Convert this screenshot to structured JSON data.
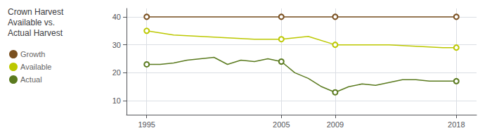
{
  "chart_data": {
    "type": "line",
    "title": "Crown Harvest\nAvailable vs.\nActual Harvest",
    "series": [
      {
        "name": "Growth",
        "color": "#7a5020",
        "x": [
          1995,
          2005,
          2009,
          2018
        ],
        "values": [
          40,
          40,
          40,
          40
        ]
      },
      {
        "name": "Available",
        "color": "#bcc800",
        "x": [
          1995,
          1997,
          1999,
          2001,
          2003,
          2005,
          2007,
          2009,
          2011,
          2013,
          2015,
          2017,
          2018
        ],
        "values": [
          35,
          33.5,
          33,
          32.5,
          32,
          32,
          33,
          30,
          30,
          30,
          29.5,
          29,
          29
        ]
      },
      {
        "name": "Actual",
        "color": "#5a7a1e",
        "x": [
          1995,
          1996,
          1997,
          1998,
          1999,
          2000,
          2001,
          2002,
          2003,
          2004,
          2005,
          2006,
          2007,
          2008,
          2009,
          2010,
          2011,
          2012,
          2013,
          2014,
          2015,
          2016,
          2017,
          2018
        ],
        "values": [
          23,
          23,
          23.5,
          24.5,
          25,
          25.5,
          23,
          24.5,
          24,
          25,
          24,
          20,
          18,
          15,
          13,
          15,
          16,
          15.5,
          16.5,
          17.5,
          17.5,
          17,
          17,
          17
        ]
      }
    ],
    "highlight_x": [
      1995,
      2005,
      2009,
      2018
    ],
    "marker": "circle",
    "xlim": [
      1993.5,
      2019.5
    ],
    "ylim": [
      5,
      43
    ],
    "xticks": [
      1995,
      2005,
      2009,
      2018
    ],
    "yticks": [
      10,
      20,
      30,
      40
    ],
    "grid": true,
    "legend": "left"
  }
}
